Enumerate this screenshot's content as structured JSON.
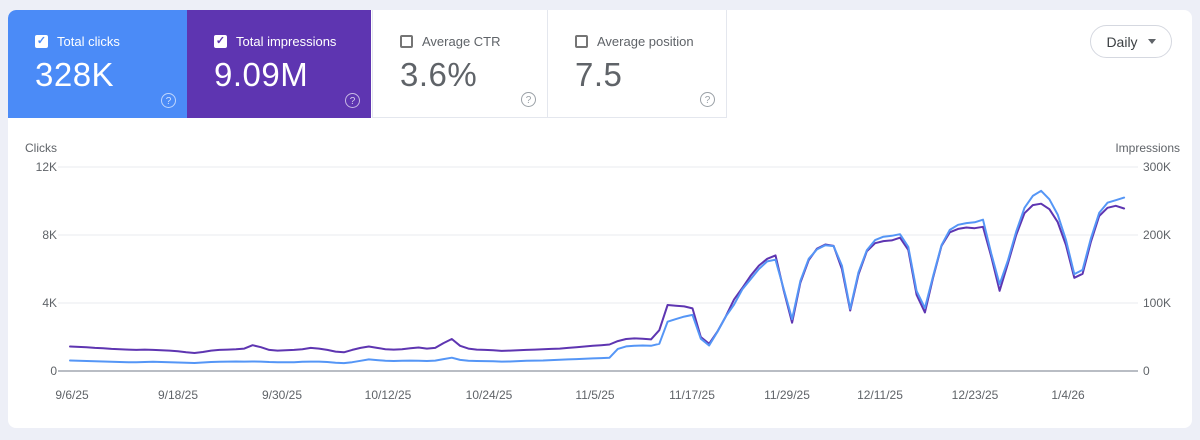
{
  "cards": [
    {
      "id": "clicks",
      "label": "Total clicks",
      "value": "328K",
      "checked": true,
      "bg": "#4b8bf7"
    },
    {
      "id": "impressions",
      "label": "Total impressions",
      "value": "9.09M",
      "checked": true,
      "bg": "#5e35b1"
    },
    {
      "id": "ctr",
      "label": "Average CTR",
      "value": "3.6%",
      "checked": false,
      "bg": "#ffffff"
    },
    {
      "id": "position",
      "label": "Average position",
      "value": "7.5",
      "checked": false,
      "bg": "#ffffff"
    }
  ],
  "help_icon_glyph": "?",
  "check_glyph": "✓",
  "controls": {
    "granularity": "Daily"
  },
  "chart": {
    "left_axis": {
      "title": "Clicks",
      "ticks": [
        "12K",
        "8K",
        "4K",
        "0"
      ]
    },
    "right_axis": {
      "title": "Impressions",
      "ticks": [
        "300K",
        "200K",
        "100K",
        "0"
      ]
    },
    "x_axis": {
      "dates": [
        "9/6/25",
        "9/18/25",
        "9/30/25",
        "10/12/25",
        "10/24/25",
        "11/5/25",
        "11/17/25",
        "11/29/25",
        "12/11/25",
        "12/23/25",
        "1/4/26"
      ]
    }
  },
  "chart_data": {
    "type": "line",
    "x_unit": "daily points from 9/6/25 through ~1/11/26",
    "x_tick_labels": [
      "9/6/25",
      "9/18/25",
      "9/30/25",
      "10/12/25",
      "10/24/25",
      "11/5/25",
      "11/17/25",
      "11/29/25",
      "12/11/25",
      "12/23/25",
      "1/4/26"
    ],
    "left_ylabel": "Clicks",
    "left_ylim": [
      0,
      12000
    ],
    "right_ylabel": "Impressions",
    "right_ylim": [
      0,
      300000
    ],
    "grid": true,
    "legend": "none (legend is the colored metric cards)",
    "series": [
      {
        "name": "Total clicks",
        "axis": "left",
        "color": "#5596f6",
        "values": [
          620,
          600,
          590,
          570,
          560,
          545,
          530,
          520,
          515,
          530,
          540,
          530,
          520,
          500,
          480,
          470,
          500,
          530,
          545,
          555,
          560,
          555,
          560,
          550,
          530,
          515,
          510,
          520,
          540,
          555,
          550,
          530,
          490,
          465,
          520,
          600,
          680,
          640,
          600,
          590,
          600,
          610,
          600,
          590,
          610,
          700,
          780,
          650,
          600,
          590,
          580,
          570,
          550,
          560,
          580,
          600,
          610,
          620,
          640,
          660,
          680,
          700,
          720,
          740,
          760,
          780,
          1300,
          1450,
          1480,
          1500,
          1480,
          1600,
          2900,
          3050,
          3200,
          3300,
          1900,
          1500,
          2300,
          3200,
          3900,
          4800,
          5400,
          6000,
          6450,
          6550,
          4800,
          3050,
          5300,
          6600,
          7150,
          7400,
          7350,
          6200,
          3650,
          5800,
          7100,
          7700,
          7900,
          7950,
          8050,
          7300,
          4700,
          3700,
          5600,
          7400,
          8300,
          8600,
          8700,
          8750,
          8900,
          6900,
          5100,
          6500,
          8200,
          9600,
          10300,
          10600,
          10100,
          9200,
          7700,
          5700,
          5950,
          7800,
          9300,
          9900,
          10050,
          10200
        ]
      },
      {
        "name": "Total impressions",
        "axis": "right",
        "color": "#5e35b1",
        "values": [
          36000,
          35500,
          35000,
          34000,
          33500,
          32500,
          32000,
          31500,
          31000,
          31500,
          31000,
          30500,
          30000,
          29000,
          27500,
          26500,
          28000,
          30000,
          31000,
          31500,
          32000,
          33000,
          38000,
          35000,
          31000,
          30000,
          30500,
          31000,
          32000,
          34000,
          33000,
          31000,
          28500,
          27500,
          31000,
          34000,
          36000,
          34000,
          32000,
          31500,
          32000,
          33500,
          34500,
          33000,
          34000,
          41000,
          47000,
          37000,
          33000,
          31500,
          31000,
          30500,
          29500,
          30000,
          30500,
          31000,
          31500,
          32000,
          32500,
          33000,
          34000,
          35000,
          36000,
          37000,
          38000,
          39000,
          44000,
          47000,
          48000,
          47500,
          46500,
          60000,
          97000,
          96000,
          95000,
          92000,
          50000,
          40000,
          58000,
          80000,
          105000,
          122000,
          140000,
          155000,
          165000,
          170000,
          118000,
          71000,
          130000,
          163000,
          180000,
          186000,
          184000,
          150000,
          89000,
          142000,
          176000,
          188000,
          191000,
          192000,
          196000,
          178000,
          112000,
          86000,
          138000,
          184000,
          204000,
          209000,
          211000,
          210000,
          212000,
          168000,
          118000,
          158000,
          200000,
          232000,
          244000,
          246000,
          238000,
          219000,
          185000,
          137000,
          143000,
          190000,
          228000,
          240000,
          243000,
          239000
        ]
      }
    ]
  }
}
